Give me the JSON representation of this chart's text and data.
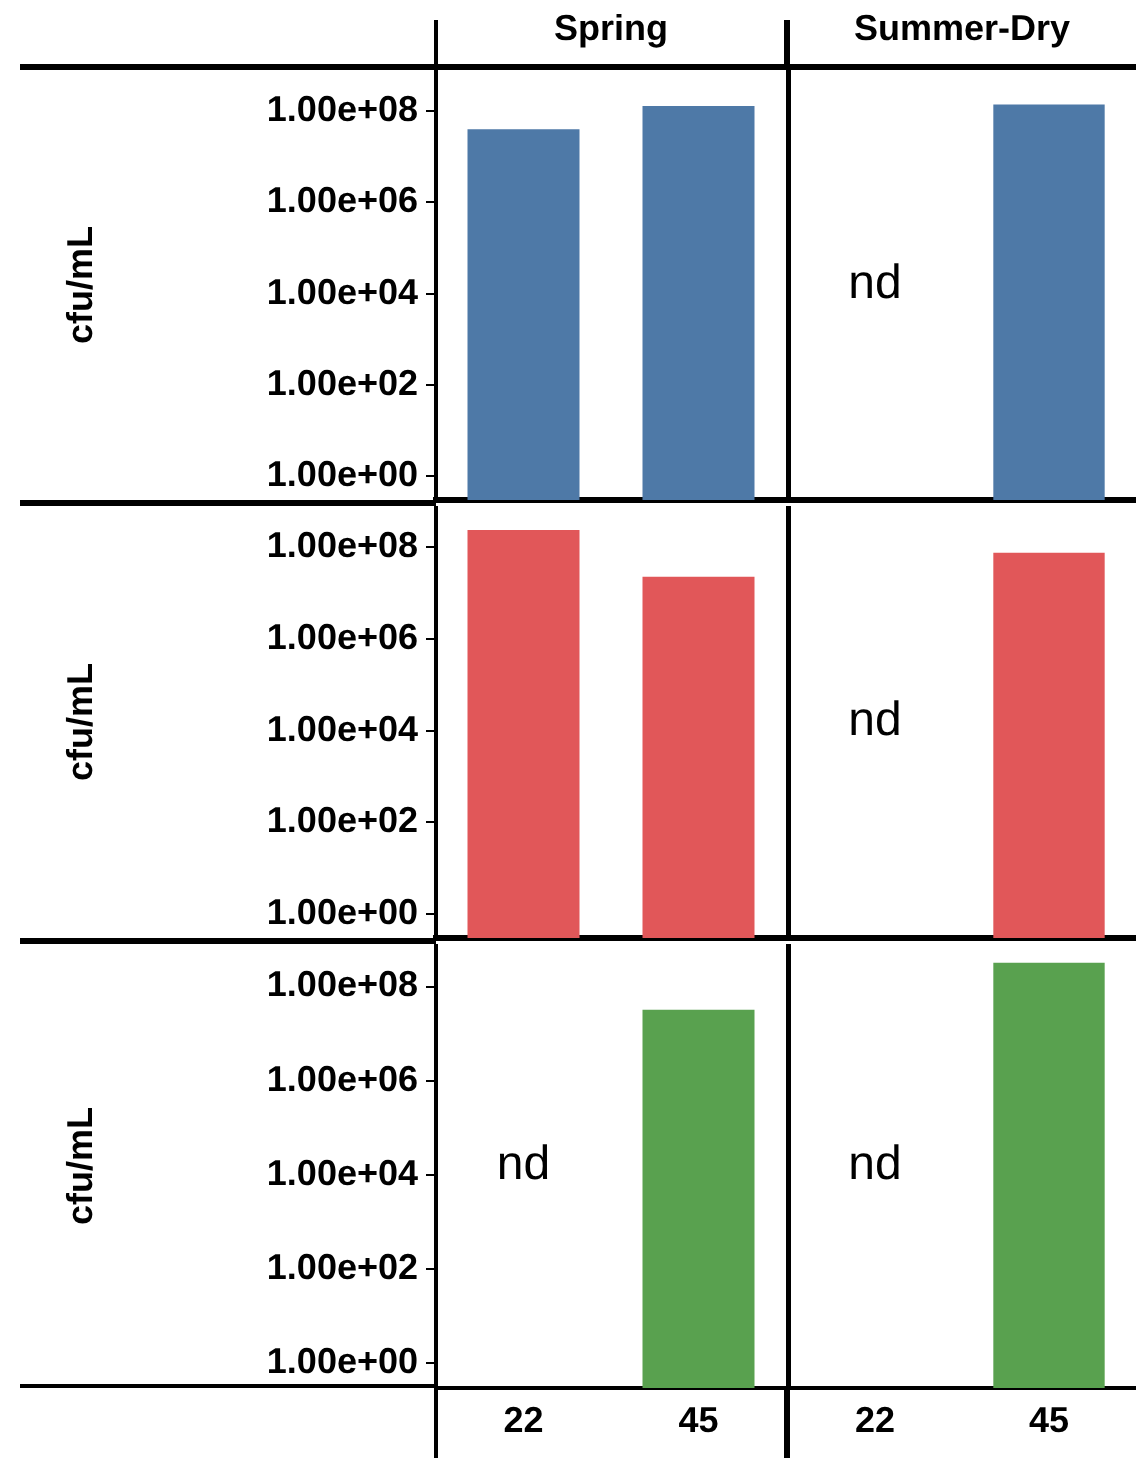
{
  "chart_data": [
    {
      "type": "bar",
      "title": "Spring",
      "ylabel": "cfu/mL",
      "categories": [
        "22",
        "45"
      ],
      "values": [
        40000000,
        130000000
      ],
      "color": "#4e79a7",
      "log": true,
      "ylim": [
        0.3,
        800000000
      ],
      "yticks": [
        {
          "value": 1,
          "label": "1.00e+00"
        },
        {
          "value": 100,
          "label": "1.00e+02"
        },
        {
          "value": 10000,
          "label": "1.00e+04"
        },
        {
          "value": 1000000,
          "label": "1.00e+06"
        },
        {
          "value": 100000000,
          "label": "1.00e+08"
        }
      ],
      "grid": false,
      "legend": false,
      "tick_labels": "y"
    },
    {
      "type": "bar",
      "title": "Summer-Dry",
      "categories": [
        "22",
        "45"
      ],
      "values": [
        null,
        140000000
      ],
      "color": "#4e79a7",
      "log": true,
      "ylim": [
        0.3,
        800000000
      ],
      "grid": false,
      "legend": false,
      "tick_labels": false,
      "annotations": [
        "nd"
      ]
    },
    {
      "type": "bar",
      "ylabel": "cfu/mL",
      "categories": [
        "22",
        "45"
      ],
      "values": [
        240000000,
        23000000
      ],
      "color": "#e15759",
      "log": true,
      "ylim": [
        0.3,
        800000000
      ],
      "yticks": [
        {
          "value": 1,
          "label": "1.00e+00"
        },
        {
          "value": 100,
          "label": "1.00e+02"
        },
        {
          "value": 10000,
          "label": "1.00e+04"
        },
        {
          "value": 1000000,
          "label": "1.00e+06"
        },
        {
          "value": 100000000,
          "label": "1.00e+08"
        }
      ],
      "grid": false,
      "legend": false,
      "tick_labels": "y"
    },
    {
      "type": "bar",
      "categories": [
        "22",
        "45"
      ],
      "values": [
        null,
        76000000
      ],
      "color": "#e15759",
      "log": true,
      "ylim": [
        0.3,
        800000000
      ],
      "grid": false,
      "legend": false,
      "tick_labels": false,
      "annotations": [
        "nd"
      ]
    },
    {
      "type": "bar",
      "ylabel": "cfu/mL",
      "categories": [
        "22",
        "45"
      ],
      "values": [
        null,
        32000000
      ],
      "color": "#59a14f",
      "log": true,
      "ylim": [
        0.3,
        800000000
      ],
      "yticks": [
        {
          "value": 1,
          "label": "1.00e+00"
        },
        {
          "value": 100,
          "label": "1.00e+02"
        },
        {
          "value": 10000,
          "label": "1.00e+04"
        },
        {
          "value": 1000000,
          "label": "1.00e+06"
        },
        {
          "value": 100000000,
          "label": "1.00e+08"
        }
      ],
      "grid": false,
      "legend": false,
      "annotations": [
        "nd"
      ]
    },
    {
      "type": "bar",
      "categories": [
        "22",
        "45"
      ],
      "values": [
        null,
        320000000
      ],
      "color": "#59a14f",
      "log": true,
      "ylim": [
        0.3,
        800000000
      ],
      "grid": false,
      "legend": false,
      "tick_labels": "x",
      "annotations": [
        "nd"
      ]
    }
  ]
}
